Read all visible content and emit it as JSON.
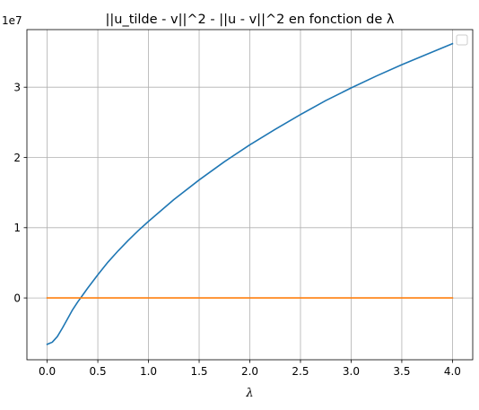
{
  "chart_data": {
    "type": "line",
    "title": "||u_tilde - v||^2 - ||u - v||^2 en fonction de λ",
    "xlabel": "λ",
    "ylabel": "",
    "y_offset_label": "1e7",
    "xlim": [
      -0.2,
      4.2
    ],
    "ylim": [
      -0.88,
      3.82
    ],
    "x_ticks": [
      0.0,
      0.5,
      1.0,
      1.5,
      2.0,
      2.5,
      3.0,
      3.5,
      4.0
    ],
    "x_tick_labels": [
      "0.0",
      "0.5",
      "1.0",
      "1.5",
      "2.0",
      "2.5",
      "3.0",
      "3.5",
      "4.0"
    ],
    "y_ticks": [
      0,
      1,
      2,
      3
    ],
    "y_tick_labels": [
      "0",
      "1",
      "2",
      "3"
    ],
    "grid": true,
    "legend": "top-right, empty",
    "colors": {
      "series_1": "#1f77b4",
      "series_2": "#ff7f0e",
      "grid": "#b0b0b0"
    },
    "series": [
      {
        "x": [
          0.0,
          0.05,
          0.1,
          0.15,
          0.2,
          0.25,
          0.3,
          0.35,
          0.4,
          0.5,
          0.6,
          0.7,
          0.8,
          0.9,
          1.0,
          1.25,
          1.5,
          1.75,
          2.0,
          2.25,
          2.5,
          2.75,
          3.0,
          3.25,
          3.5,
          3.75,
          4.0
        ],
        "y": [
          -0.66,
          -0.63,
          -0.55,
          -0.43,
          -0.3,
          -0.17,
          -0.06,
          0.04,
          0.14,
          0.33,
          0.51,
          0.67,
          0.82,
          0.96,
          1.09,
          1.4,
          1.68,
          1.94,
          2.18,
          2.4,
          2.61,
          2.81,
          2.99,
          3.16,
          3.32,
          3.47,
          3.62
        ]
      },
      {
        "x": [
          0.0,
          4.0
        ],
        "y": [
          0.0,
          0.0
        ]
      }
    ]
  }
}
